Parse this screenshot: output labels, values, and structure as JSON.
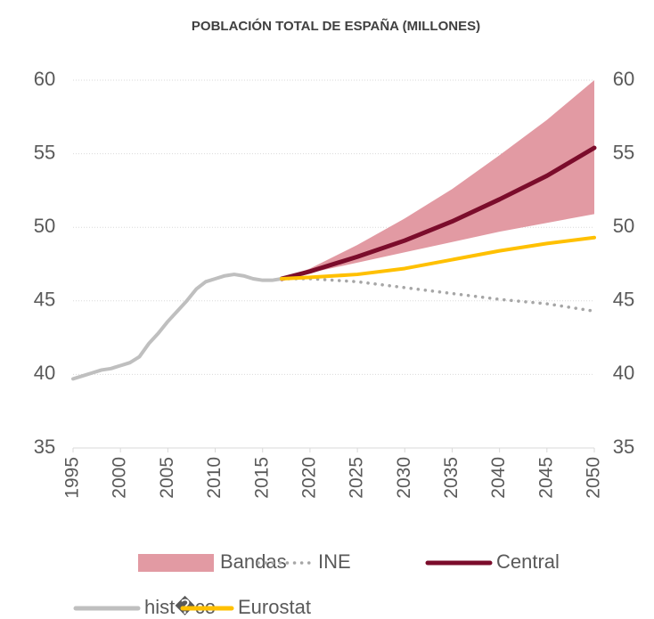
{
  "chart_data": {
    "type": "line",
    "title": "POBLACIÓN TOTAL DE ESPAÑA (MILLONES)",
    "xlim": [
      1995,
      2050
    ],
    "xticks": [
      1995,
      2000,
      2005,
      2010,
      2015,
      2020,
      2025,
      2030,
      2035,
      2040,
      2045,
      2050
    ],
    "ylim": [
      35,
      60
    ],
    "yticks": [
      35,
      40,
      45,
      50,
      55,
      60
    ],
    "y2lim": [
      35,
      60
    ],
    "y2ticks": [
      35,
      40,
      45,
      50,
      55,
      60
    ],
    "grid": true,
    "series": [
      {
        "name": "Bandas",
        "kind": "band",
        "color": "#e29aa3",
        "x": [
          2017,
          2020,
          2025,
          2030,
          2035,
          2040,
          2045,
          2050
        ],
        "low": [
          46.5,
          46.9,
          47.6,
          48.3,
          49.0,
          49.7,
          50.3,
          50.9
        ],
        "high": [
          46.5,
          47.2,
          48.8,
          50.6,
          52.6,
          54.9,
          57.3,
          60.0
        ]
      },
      {
        "name": "INE",
        "color": "#a6a6a6",
        "dash": "dotted",
        "x": [
          2017,
          2020,
          2025,
          2030,
          2035,
          2040,
          2045,
          2050
        ],
        "values": [
          46.5,
          46.5,
          46.3,
          45.9,
          45.5,
          45.1,
          44.8,
          44.3
        ]
      },
      {
        "name": "Central",
        "color": "#7b0c2b",
        "x": [
          2017,
          2020,
          2025,
          2030,
          2035,
          2040,
          2045,
          2050
        ],
        "values": [
          46.5,
          47.0,
          48.0,
          49.1,
          50.4,
          51.9,
          53.5,
          55.4
        ]
      },
      {
        "name": "hist�co",
        "color": "#bfbfbf",
        "x": [
          1995,
          1996,
          1997,
          1998,
          1999,
          2000,
          2001,
          2002,
          2003,
          2004,
          2005,
          2006,
          2007,
          2008,
          2009,
          2010,
          2011,
          2012,
          2013,
          2014,
          2015,
          2016,
          2017
        ],
        "values": [
          39.7,
          39.9,
          40.1,
          40.3,
          40.4,
          40.6,
          40.8,
          41.2,
          42.1,
          42.8,
          43.6,
          44.3,
          45.0,
          45.8,
          46.3,
          46.5,
          46.7,
          46.8,
          46.7,
          46.5,
          46.4,
          46.4,
          46.5
        ]
      },
      {
        "name": "Eurostat",
        "color": "#ffc000",
        "x": [
          2017,
          2020,
          2025,
          2030,
          2035,
          2040,
          2045,
          2050
        ],
        "values": [
          46.5,
          46.6,
          46.8,
          47.2,
          47.8,
          48.4,
          48.9,
          49.3
        ]
      }
    ]
  }
}
